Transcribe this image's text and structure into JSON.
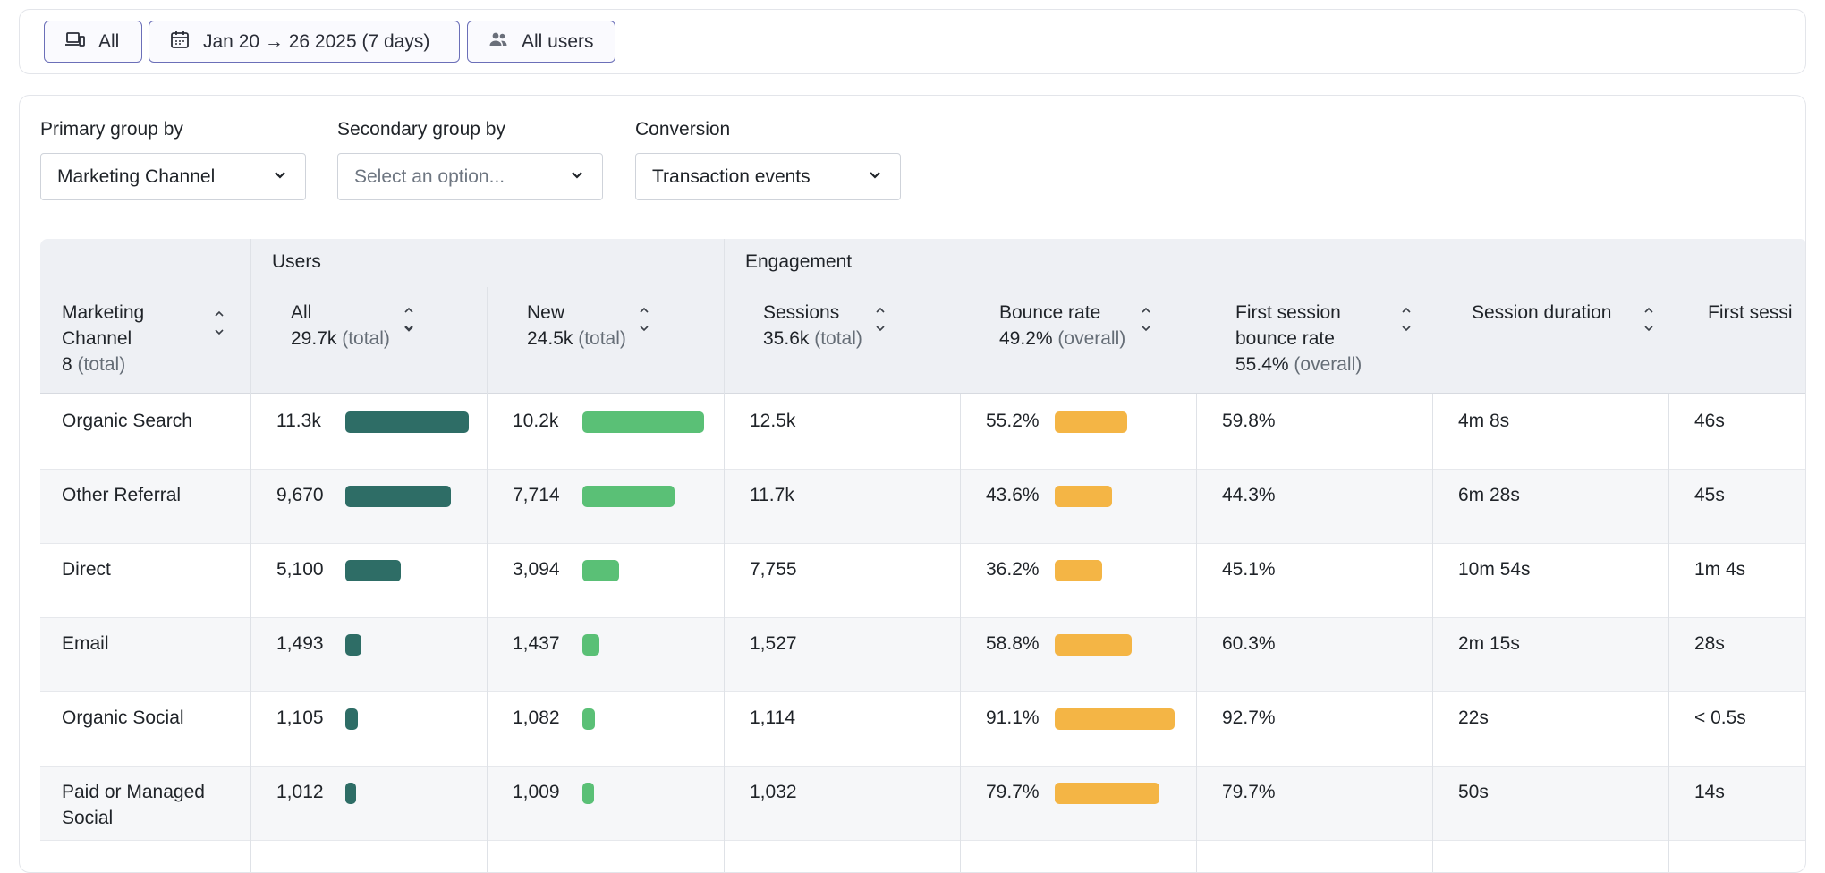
{
  "filters": {
    "device_label": "All",
    "date_label": "Jan 20 → 26 2025 (7 days)",
    "users_label": "All users"
  },
  "controls": {
    "primary_label": "Primary group by",
    "primary_value": "Marketing Channel",
    "secondary_label": "Secondary group by",
    "secondary_placeholder": "Select an option...",
    "conversion_label": "Conversion",
    "conversion_value": "Transaction events"
  },
  "table": {
    "groups": {
      "users": "Users",
      "engagement": "Engagement"
    },
    "columns": {
      "channel": {
        "title": "Marketing Channel",
        "title_l1": "Marketing",
        "title_l2": "Channel",
        "total_value": "8",
        "total_suffix": "(total)"
      },
      "all": {
        "title": "All",
        "total_value": "29.7k",
        "total_suffix": "(total)"
      },
      "new": {
        "title": "New",
        "total_value": "24.5k",
        "total_suffix": "(total)"
      },
      "sessions": {
        "title": "Sessions",
        "total_value": "35.6k",
        "total_suffix": "(total)"
      },
      "bounce": {
        "title": "Bounce rate",
        "total_value": "49.2%",
        "total_suffix": "(overall)"
      },
      "first_bounce": {
        "title_l1": "First session",
        "title_l2": "bounce rate",
        "total_value": "55.4%",
        "total_suffix": "(overall)"
      },
      "duration": {
        "title": "Session duration"
      },
      "first_session": {
        "title": "First sessi"
      }
    },
    "rows": [
      {
        "channel": "Organic Search",
        "channel_l2": "",
        "all": "11.3k",
        "all_frac": 1.0,
        "new": "10.2k",
        "new_frac": 1.0,
        "sessions": "12.5k",
        "bounce": "55.2%",
        "bounce_frac": 0.606,
        "first_bounce": "59.8%",
        "duration": "4m 8s",
        "first_session": "46s"
      },
      {
        "channel": "Other Referral",
        "channel_l2": "",
        "all": "9,670",
        "all_frac": 0.856,
        "new": "7,714",
        "new_frac": 0.756,
        "sessions": "11.7k",
        "bounce": "43.6%",
        "bounce_frac": 0.479,
        "first_bounce": "44.3%",
        "duration": "6m 28s",
        "first_session": "45s"
      },
      {
        "channel": "Direct",
        "channel_l2": "",
        "all": "5,100",
        "all_frac": 0.451,
        "new": "3,094",
        "new_frac": 0.303,
        "sessions": "7,755",
        "bounce": "36.2%",
        "bounce_frac": 0.397,
        "first_bounce": "45.1%",
        "duration": "10m 54s",
        "first_session": "1m 4s"
      },
      {
        "channel": "Email",
        "channel_l2": "",
        "all": "1,493",
        "all_frac": 0.132,
        "new": "1,437",
        "new_frac": 0.141,
        "sessions": "1,527",
        "bounce": "58.8%",
        "bounce_frac": 0.645,
        "first_bounce": "60.3%",
        "duration": "2m 15s",
        "first_session": "28s"
      },
      {
        "channel": "Organic Social",
        "channel_l2": "",
        "all": "1,105",
        "all_frac": 0.098,
        "new": "1,082",
        "new_frac": 0.106,
        "sessions": "1,114",
        "bounce": "91.1%",
        "bounce_frac": 1.0,
        "first_bounce": "92.7%",
        "duration": "22s",
        "first_session": "< 0.5s"
      },
      {
        "channel": "Paid or Managed",
        "channel_l2": "Social",
        "all": "1,012",
        "all_frac": 0.09,
        "new": "1,009",
        "new_frac": 0.099,
        "sessions": "1,032",
        "bounce": "79.7%",
        "bounce_frac": 0.875,
        "first_bounce": "79.7%",
        "duration": "50s",
        "first_session": "14s"
      }
    ]
  }
}
